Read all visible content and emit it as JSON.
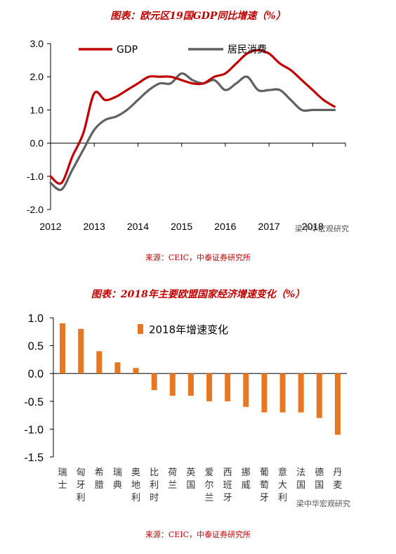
{
  "chart_data": [
    {
      "type": "line",
      "title": "图表：欧元区19国GDP同比增速（%）",
      "source": "来源：CEIC，中泰证券研究所",
      "watermark": "梁中华宏观研究",
      "x_ticks": [
        "2012",
        "2013",
        "2014",
        "2015",
        "2016",
        "2017",
        "2018"
      ],
      "y_ticks": [
        "3.0",
        "2.0",
        "1.0",
        "0.0",
        "-1.0",
        "-2.0"
      ],
      "ylim": [
        -2.0,
        3.0
      ],
      "xlim": [
        2012.0,
        2018.75
      ],
      "series": [
        {
          "name": "GDP",
          "color": "#c00000",
          "x": [
            2012.0,
            2012.25,
            2012.5,
            2012.75,
            2013.0,
            2013.25,
            2013.5,
            2013.75,
            2014.0,
            2014.25,
            2014.5,
            2014.75,
            2015.0,
            2015.25,
            2015.5,
            2015.75,
            2016.0,
            2016.25,
            2016.5,
            2016.75,
            2017.0,
            2017.25,
            2017.5,
            2017.75,
            2018.0,
            2018.25,
            2018.5
          ],
          "values": [
            -1.0,
            -1.2,
            -0.4,
            0.3,
            1.5,
            1.3,
            1.4,
            1.6,
            1.8,
            2.0,
            2.0,
            2.0,
            1.9,
            1.8,
            1.8,
            2.0,
            2.1,
            2.4,
            2.7,
            2.8,
            2.7,
            2.4,
            2.2,
            1.9,
            1.6,
            1.3,
            1.1
          ]
        },
        {
          "name": "居民消费",
          "color": "#606060",
          "x": [
            2012.0,
            2012.25,
            2012.5,
            2012.75,
            2013.0,
            2013.25,
            2013.5,
            2013.75,
            2014.0,
            2014.25,
            2014.5,
            2014.75,
            2015.0,
            2015.25,
            2015.5,
            2015.75,
            2016.0,
            2016.25,
            2016.5,
            2016.75,
            2017.0,
            2017.25,
            2017.5,
            2017.75,
            2018.0,
            2018.25,
            2018.5
          ],
          "values": [
            -1.2,
            -1.4,
            -0.8,
            -0.2,
            0.4,
            0.7,
            0.8,
            1.0,
            1.3,
            1.6,
            1.8,
            1.8,
            2.1,
            1.9,
            1.8,
            1.9,
            1.6,
            1.8,
            2.0,
            1.6,
            1.6,
            1.6,
            1.3,
            1.0,
            1.0,
            1.0,
            1.0
          ]
        }
      ]
    },
    {
      "type": "bar",
      "title": "图表：2018年主要欧盟国家经济增速变化（%）",
      "source": "来源：CEIC，中泰证券研究所",
      "watermark": "梁中华宏观研究",
      "legend": "2018年增速变化",
      "color": "#e87722",
      "y_ticks": [
        "1.0",
        "0.5",
        "0.0",
        "-0.5",
        "-1.0",
        "-1.5"
      ],
      "ylim": [
        -1.5,
        1.0
      ],
      "categories": [
        "瑞士",
        "匈牙利",
        "希腊",
        "瑞典",
        "奥地利",
        "比利时",
        "荷兰",
        "英国",
        "爱尔兰",
        "西班牙",
        "挪威",
        "葡萄牙",
        "意大利",
        "法国",
        "德国",
        "丹麦"
      ],
      "values": [
        0.9,
        0.8,
        0.4,
        0.2,
        0.1,
        -0.3,
        -0.4,
        -0.4,
        -0.5,
        -0.5,
        -0.6,
        -0.7,
        -0.7,
        -0.7,
        -0.8,
        -1.1
      ]
    }
  ]
}
